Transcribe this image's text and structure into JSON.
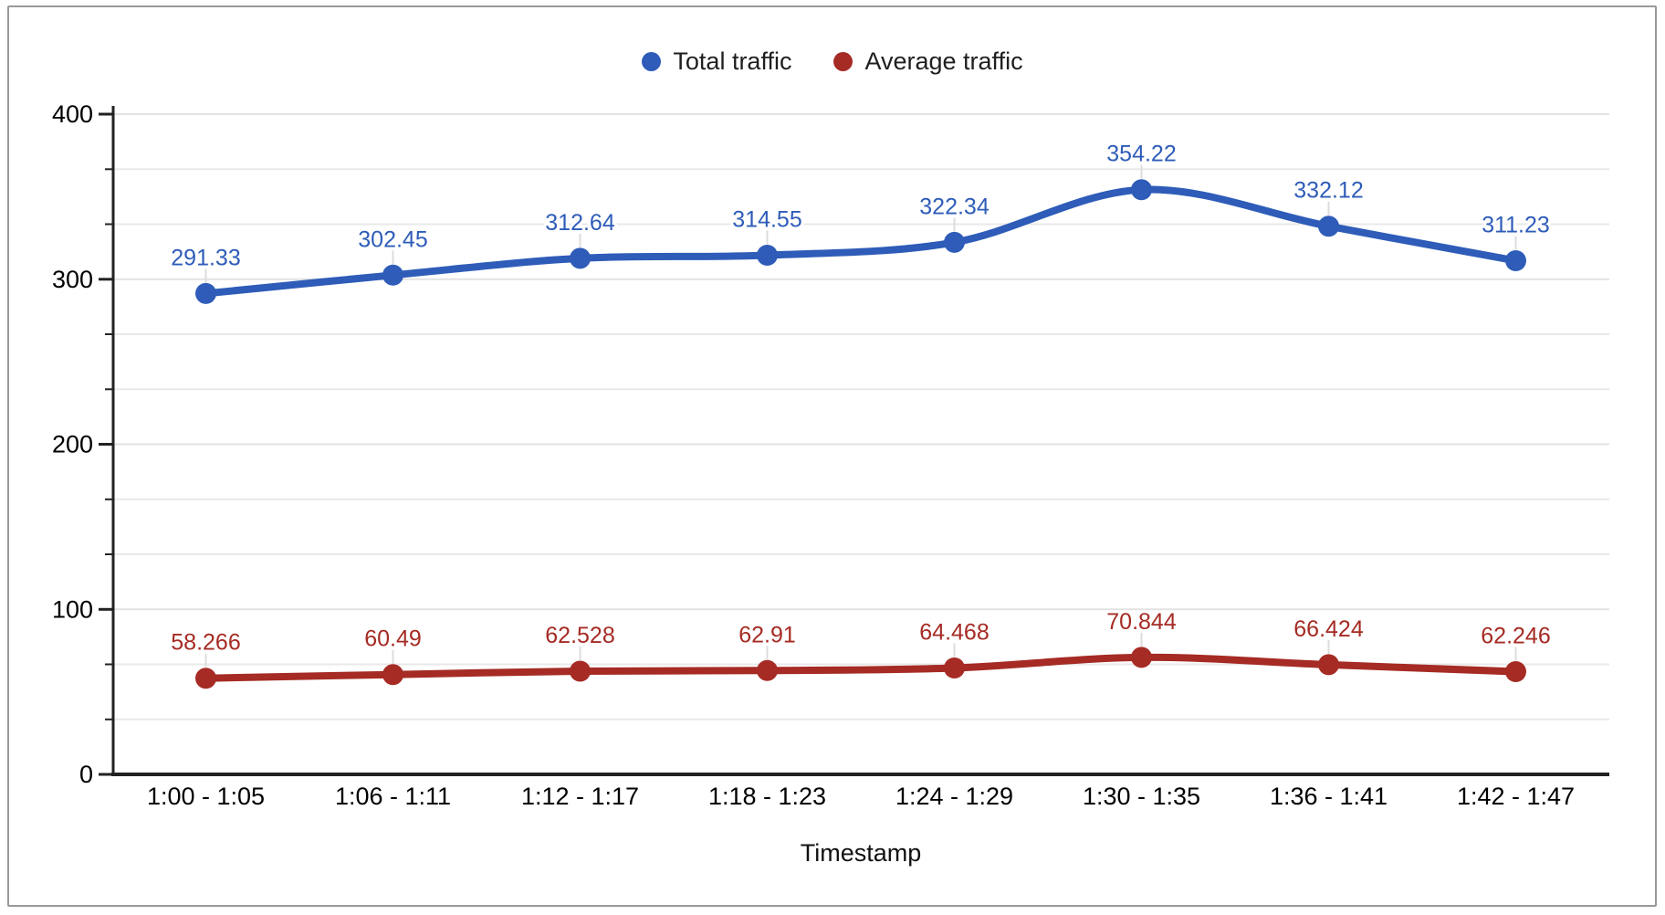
{
  "chart_data": {
    "type": "line",
    "title": "",
    "categories": [
      "1:00 - 1:05",
      "1:06 - 1:11",
      "1:12 - 1:17",
      "1:18 - 1:23",
      "1:24 - 1:29",
      "1:30 - 1:35",
      "1:36 - 1:41",
      "1:42 - 1:47"
    ],
    "series": [
      {
        "name": "Total traffic",
        "color": "#2e5cb8",
        "values": [
          291.33,
          302.45,
          312.64,
          314.55,
          322.34,
          354.22,
          332.12,
          311.23
        ]
      },
      {
        "name": "Average traffic",
        "color": "#a52b24",
        "values": [
          58.266,
          60.49,
          62.528,
          62.91,
          64.468,
          70.844,
          66.424,
          62.246
        ]
      }
    ],
    "xlabel": "Timestamp",
    "ylabel": "",
    "ylim": [
      0,
      400
    ],
    "y_major_ticks": [
      0,
      100,
      200,
      300,
      400
    ],
    "y_minor_divisions_per_major": 3,
    "grid": true,
    "legend_position": "top-center",
    "point_labels": true,
    "smooth": true
  },
  "style_colors": {
    "background": "#ffffff",
    "frame_border": "#999999",
    "axis_line": "#222222",
    "axis_text": "#000000",
    "major_grid": "#e2e2e2",
    "minor_grid": "#e9e9e9",
    "annotation_stem": "#dcdcdc"
  }
}
